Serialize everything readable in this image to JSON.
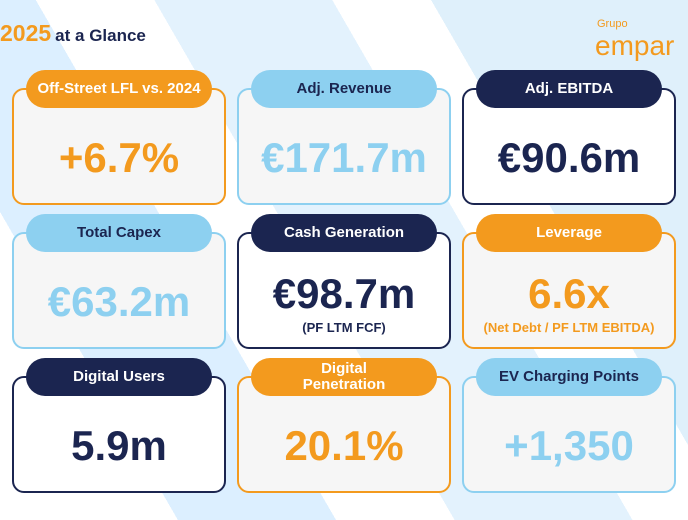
{
  "header": {
    "year": "2025",
    "title": "at a Glance",
    "logo_small": "Grupo",
    "logo_large": "empar"
  },
  "cards": [
    {
      "label": "Off-Street LFL vs. 2024",
      "value": "+6.7%"
    },
    {
      "label": "Adj. Revenue",
      "value": "€171.7m"
    },
    {
      "label": "Adj. EBITDA",
      "value": "€90.6m"
    },
    {
      "label": "Total Capex",
      "value": "€63.2m"
    },
    {
      "label": "Cash Generation",
      "value": "€98.7m",
      "note": "(PF LTM FCF)"
    },
    {
      "label": "Leverage",
      "value": "6.6x",
      "note": "(Net Debt / PF LTM EBITDA)"
    },
    {
      "label": "Digital Users",
      "value": "5.9m"
    },
    {
      "label": "Digital Penetration",
      "value": "20.1%"
    },
    {
      "label": "EV Charging Points",
      "value": "+1,350"
    }
  ]
}
